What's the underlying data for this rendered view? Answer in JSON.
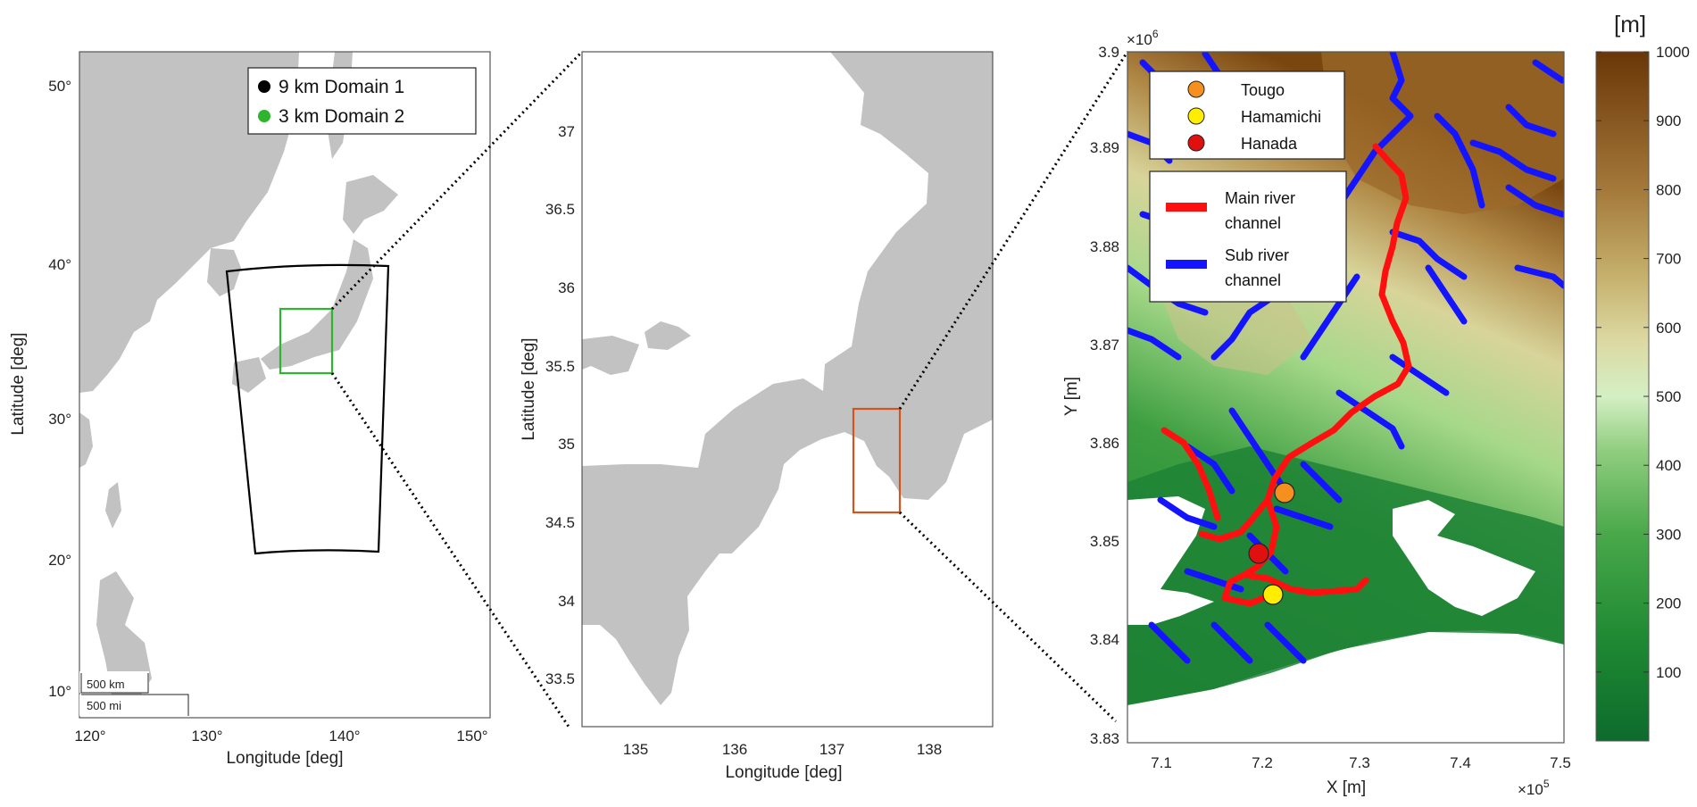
{
  "panel1": {
    "xlabel": "Longitude [deg]",
    "ylabel": "Latitude [deg]",
    "xticks": [
      "120°",
      "130°",
      "140°",
      "150°"
    ],
    "yticks": [
      "10°",
      "20°",
      "30°",
      "40°",
      "50°"
    ],
    "legend": [
      {
        "label": "9 km Domain 1",
        "color": "#000000"
      },
      {
        "label": "3 km Domain 2",
        "color": "#2db52d"
      }
    ],
    "domain1_color": "#000000",
    "domain2_color": "#2db52d",
    "scalebar": {
      "km": "500 km",
      "mi": "500 mi"
    }
  },
  "panel2": {
    "xlabel": "Longitude [deg]",
    "ylabel": "Latitude [deg]",
    "xticks": [
      "135",
      "136",
      "137",
      "138"
    ],
    "yticks": [
      "33.5",
      "34",
      "34.5",
      "35",
      "35.5",
      "36",
      "36.5",
      "37"
    ],
    "study_box_color": "#d4541f"
  },
  "panel3": {
    "xlabel": "X [m]",
    "ylabel": "Y [m]",
    "x_multiplier": "×10",
    "x_multiplier_exp": "5",
    "y_multiplier": "×10",
    "y_multiplier_exp": "6",
    "xticks": [
      "7.1",
      "7.2",
      "7.3",
      "7.4",
      "7.5"
    ],
    "yticks": [
      "3.83",
      "3.84",
      "3.85",
      "3.86",
      "3.87",
      "3.88",
      "3.89",
      "3.9"
    ],
    "stations": [
      {
        "label": "Tougo",
        "color": "#f5901e"
      },
      {
        "label": "Hamamichi",
        "color": "#ffee00"
      },
      {
        "label": "Hanada",
        "color": "#e01010"
      }
    ],
    "channels": [
      {
        "label_line1": "Main river",
        "label_line2": "channel",
        "color": "#ff0000"
      },
      {
        "label_line1": "Sub river",
        "label_line2": "channel",
        "color": "#0000ff"
      }
    ]
  },
  "colorbar": {
    "unit": "[m]",
    "ticks": [
      "100",
      "200",
      "300",
      "400",
      "500",
      "600",
      "700",
      "800",
      "900",
      "1000"
    ],
    "min": 0,
    "max": 1000
  }
}
